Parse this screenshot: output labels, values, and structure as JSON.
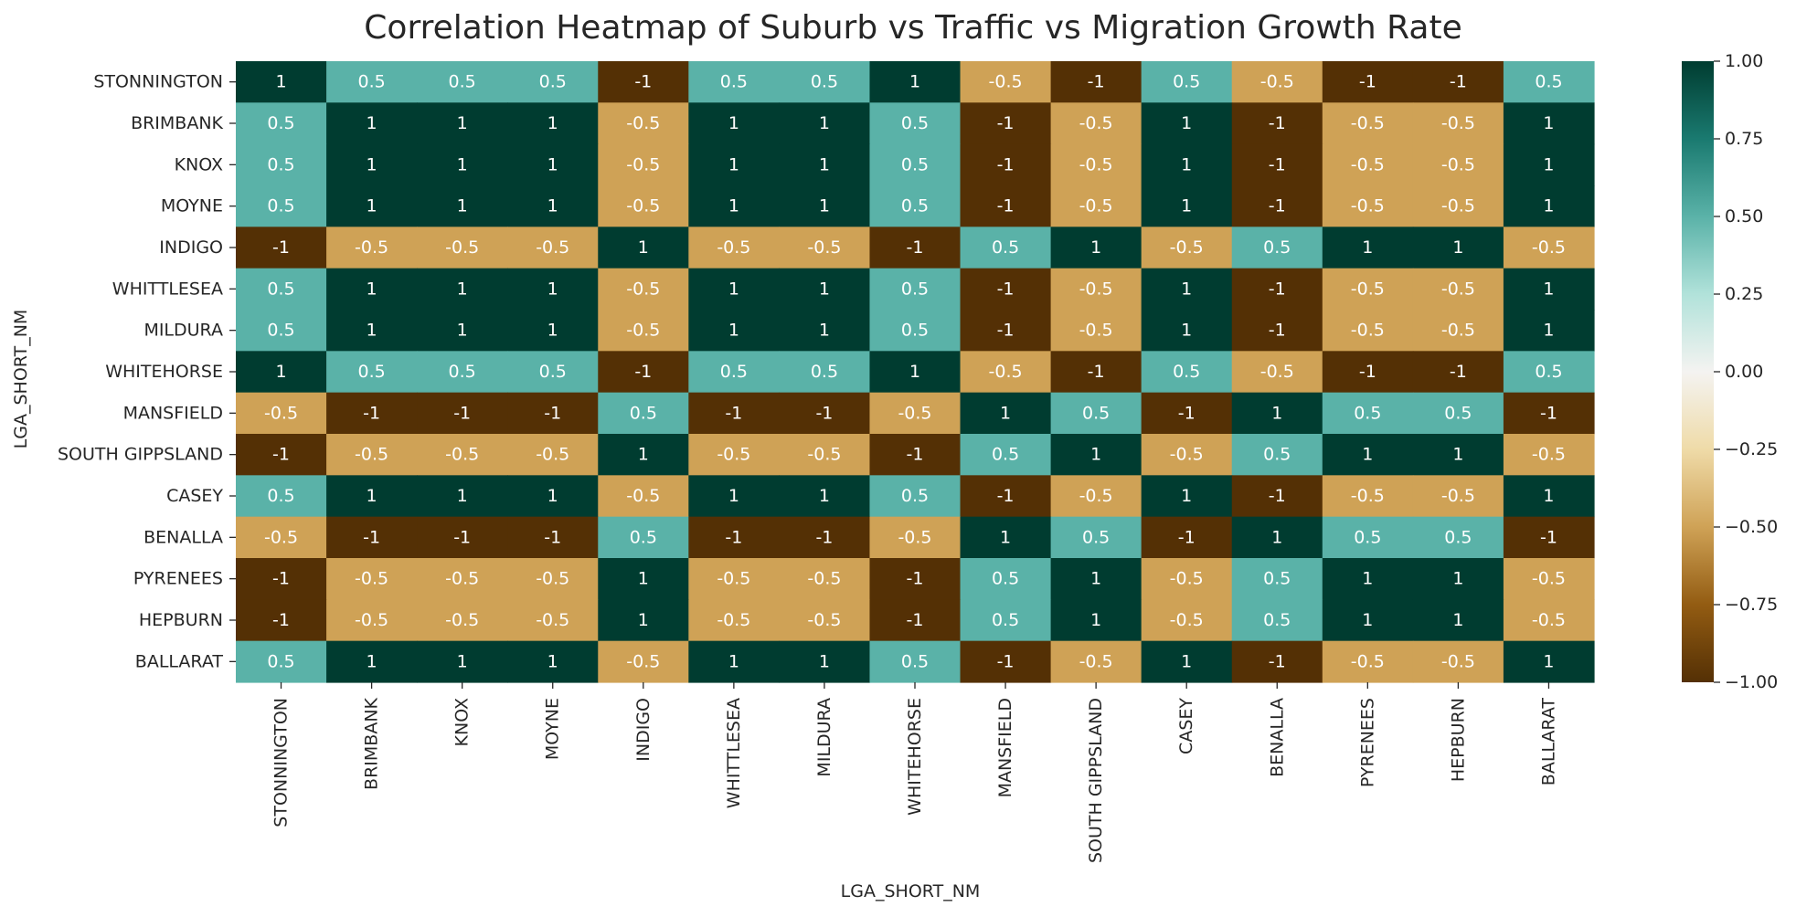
{
  "chart_data": {
    "type": "heatmap",
    "title": "Correlation Heatmap of Suburb vs Traffic vs Migration Growth Rate",
    "xlabel": "LGA_SHORT_NM",
    "ylabel": "LGA_SHORT_NM",
    "rows": [
      "STONNINGTON",
      "BRIMBANK",
      "KNOX",
      "MOYNE",
      "INDIGO",
      "WHITTLESEA",
      "MILDURA",
      "WHITEHORSE",
      "MANSFIELD",
      "SOUTH GIPPSLAND",
      "CASEY",
      "BENALLA",
      "PYRENEES",
      "HEPBURN",
      "BALLARAT"
    ],
    "columns": [
      "STONNINGTON",
      "BRIMBANK",
      "KNOX",
      "MOYNE",
      "INDIGO",
      "WHITTLESEA",
      "MILDURA",
      "WHITEHORSE",
      "MANSFIELD",
      "SOUTH GIPPSLAND",
      "CASEY",
      "BENALLA",
      "PYRENEES",
      "HEPBURN",
      "BALLARAT"
    ],
    "values": [
      [
        1,
        0.5,
        0.5,
        0.5,
        -1,
        0.5,
        0.5,
        1,
        -0.5,
        -1,
        0.5,
        -0.5,
        -1,
        -1,
        0.5
      ],
      [
        0.5,
        1,
        1,
        1,
        -0.5,
        1,
        1,
        0.5,
        -1,
        -0.5,
        1,
        -1,
        -0.5,
        -0.5,
        1
      ],
      [
        0.5,
        1,
        1,
        1,
        -0.5,
        1,
        1,
        0.5,
        -1,
        -0.5,
        1,
        -1,
        -0.5,
        -0.5,
        1
      ],
      [
        0.5,
        1,
        1,
        1,
        -0.5,
        1,
        1,
        0.5,
        -1,
        -0.5,
        1,
        -1,
        -0.5,
        -0.5,
        1
      ],
      [
        -1,
        -0.5,
        -0.5,
        -0.5,
        1,
        -0.5,
        -0.5,
        -1,
        0.5,
        1,
        -0.5,
        0.5,
        1,
        1,
        -0.5
      ],
      [
        0.5,
        1,
        1,
        1,
        -0.5,
        1,
        1,
        0.5,
        -1,
        -0.5,
        1,
        -1,
        -0.5,
        -0.5,
        1
      ],
      [
        0.5,
        1,
        1,
        1,
        -0.5,
        1,
        1,
        0.5,
        -1,
        -0.5,
        1,
        -1,
        -0.5,
        -0.5,
        1
      ],
      [
        1,
        0.5,
        0.5,
        0.5,
        -1,
        0.5,
        0.5,
        1,
        -0.5,
        -1,
        0.5,
        -0.5,
        -1,
        -1,
        0.5
      ],
      [
        -0.5,
        -1,
        -1,
        -1,
        0.5,
        -1,
        -1,
        -0.5,
        1,
        0.5,
        -1,
        1,
        0.5,
        0.5,
        -1
      ],
      [
        -1,
        -0.5,
        -0.5,
        -0.5,
        1,
        -0.5,
        -0.5,
        -1,
        0.5,
        1,
        -0.5,
        0.5,
        1,
        1,
        -0.5
      ],
      [
        0.5,
        1,
        1,
        1,
        -0.5,
        1,
        1,
        0.5,
        -1,
        -0.5,
        1,
        -1,
        -0.5,
        -0.5,
        1
      ],
      [
        -0.5,
        -1,
        -1,
        -1,
        0.5,
        -1,
        -1,
        -0.5,
        1,
        0.5,
        -1,
        1,
        0.5,
        0.5,
        -1
      ],
      [
        -1,
        -0.5,
        -0.5,
        -0.5,
        1,
        -0.5,
        -0.5,
        -1,
        0.5,
        1,
        -0.5,
        0.5,
        1,
        1,
        -0.5
      ],
      [
        -1,
        -0.5,
        -0.5,
        -0.5,
        1,
        -0.5,
        -0.5,
        -1,
        0.5,
        1,
        -0.5,
        0.5,
        1,
        1,
        -0.5
      ],
      [
        0.5,
        1,
        1,
        1,
        -0.5,
        1,
        1,
        0.5,
        -1,
        -0.5,
        1,
        -1,
        -0.5,
        -0.5,
        1
      ]
    ],
    "value_range": [
      -1,
      1
    ],
    "annotations": true,
    "colormap": {
      "name": "BrBG",
      "value_colors": [
        {
          "value": -1,
          "color": "#543005"
        },
        {
          "value": -0.5,
          "color": "#cfa256"
        },
        {
          "value": 0.5,
          "color": "#5ab2a8"
        },
        {
          "value": 1,
          "color": "#003c30"
        }
      ],
      "gradient_stops": [
        {
          "value": -1.0,
          "color": "#543005"
        },
        {
          "value": -0.75,
          "color": "#935c12"
        },
        {
          "value": -0.5,
          "color": "#cfa256"
        },
        {
          "value": -0.25,
          "color": "#efdba8"
        },
        {
          "value": 0.0,
          "color": "#f4f3f1"
        },
        {
          "value": 0.25,
          "color": "#b1e2da"
        },
        {
          "value": 0.5,
          "color": "#5ab2a8"
        },
        {
          "value": 0.75,
          "color": "#1a7a70"
        },
        {
          "value": 1.0,
          "color": "#003c30"
        }
      ]
    },
    "colorbar": {
      "ticks": [
        1.0,
        0.75,
        0.5,
        0.25,
        0.0,
        -0.25,
        -0.5,
        -0.75,
        -1.0
      ],
      "tick_labels": [
        "1.00",
        "0.75",
        "0.50",
        "0.25",
        "0.00",
        "−0.25",
        "−0.50",
        "−0.75",
        "−1.00"
      ]
    }
  }
}
